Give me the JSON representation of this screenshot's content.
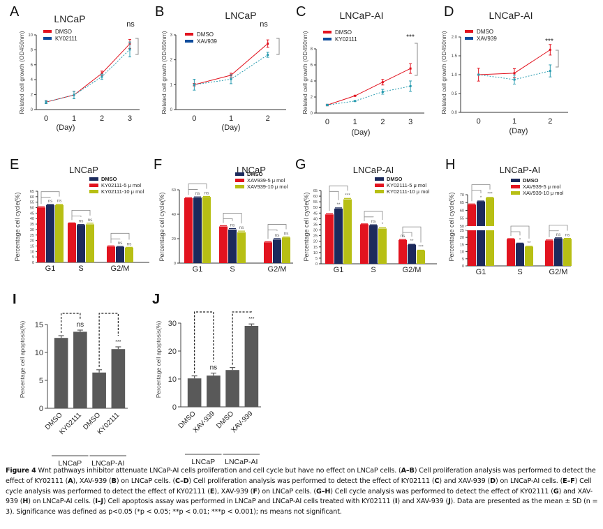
{
  "colors": {
    "dmso_red": "#e2131f",
    "treat_navy": "#1c2a5c",
    "treat_lime": "#b7bf14",
    "treat_teal_line": "#2a9cb0",
    "legend_blue": "#0d4c9c",
    "bar_gray": "#595959",
    "axis": "#333333",
    "bracket": "#888888"
  },
  "chart_data": [
    {
      "id": "A",
      "type": "line",
      "title": "LNCaP",
      "xlabel": "(Day)",
      "ylabel": "Related cell growth (OD450nm)",
      "x": [
        0,
        1,
        2,
        3
      ],
      "xlim": [
        -0.35,
        3.35
      ],
      "ylim": [
        0,
        10
      ],
      "yticks": [
        "0",
        "2",
        "4",
        "6",
        "8",
        "10"
      ],
      "ytick_values": [
        0,
        2,
        4,
        6,
        8,
        10
      ],
      "series": [
        {
          "name": "DMSO",
          "values": [
            1.0,
            1.95,
            4.85,
            8.8
          ],
          "err": [
            0.2,
            0.5,
            0.3,
            0.6
          ],
          "style": "solid"
        },
        {
          "name": "KY02111",
          "values": [
            1.0,
            1.95,
            4.4,
            8.05
          ],
          "err": [
            0.2,
            0.5,
            0.35,
            1.0
          ],
          "style": "dashed"
        }
      ],
      "significance": "ns",
      "legend": "top-left"
    },
    {
      "id": "B",
      "type": "line",
      "title": "LNCaP",
      "xlabel": "(Day)",
      "ylabel": "Related cell growth (OD450nm)",
      "x": [
        0,
        1,
        2
      ],
      "xlim": [
        -0.5,
        2.5
      ],
      "ylim": [
        0,
        3
      ],
      "yticks": [
        "0",
        "1",
        "2",
        "3"
      ],
      "ytick_values": [
        0,
        1,
        2,
        3
      ],
      "series": [
        {
          "name": "DMSO",
          "values": [
            1.0,
            1.38,
            2.65
          ],
          "err": [
            0.05,
            0.08,
            0.15
          ],
          "style": "solid"
        },
        {
          "name": "XAV939",
          "values": [
            1.0,
            1.22,
            2.2
          ],
          "err": [
            0.22,
            0.18,
            0.1
          ],
          "style": "dashed"
        }
      ],
      "significance": "ns",
      "legend": "top-left"
    },
    {
      "id": "C",
      "type": "line",
      "title": "LNCaP-AI",
      "xlabel": "(Day)",
      "ylabel": "Related cell growth (OD450nm)",
      "x": [
        0,
        1,
        2,
        3
      ],
      "xlim": [
        -0.4,
        3.5
      ],
      "ylim": [
        0,
        8
      ],
      "yticks": [
        "0",
        "2",
        "4",
        "6",
        "8"
      ],
      "ytick_values": [
        0,
        2,
        4,
        6,
        8
      ],
      "series": [
        {
          "name": "DMSO",
          "values": [
            1.0,
            2.15,
            3.85,
            5.55
          ],
          "err": [
            0.1,
            0.05,
            0.35,
            0.6
          ],
          "style": "solid"
        },
        {
          "name": "KY02111",
          "values": [
            1.0,
            1.5,
            2.65,
            3.35
          ],
          "err": [
            0.1,
            0.05,
            0.3,
            0.65
          ],
          "style": "dashed"
        }
      ],
      "significance": "***",
      "legend": "top-left"
    },
    {
      "id": "D",
      "type": "line",
      "title": "LNCaP-AI",
      "xlabel": "(Day)",
      "ylabel": "Related cell growth (OD450nm)",
      "x": [
        0,
        1,
        2
      ],
      "xlim": [
        -0.5,
        2.5
      ],
      "ylim": [
        0,
        2
      ],
      "yticks": [
        "0.0",
        "0.5",
        "1.0",
        "1.5",
        "2.0"
      ],
      "ytick_values": [
        0,
        0.5,
        1.0,
        1.5,
        2.0
      ],
      "series": [
        {
          "name": "DMSO",
          "values": [
            1.0,
            1.04,
            1.66
          ],
          "err": [
            0.17,
            0.12,
            0.14
          ],
          "style": "solid"
        },
        {
          "name": "XAV939",
          "values": [
            1.0,
            0.87,
            1.1
          ],
          "err": [
            0.0,
            0.12,
            0.16
          ],
          "style": "dashed"
        }
      ],
      "significance": "***",
      "legend": "top-left"
    },
    {
      "id": "E",
      "type": "bar",
      "title": "LNCaP",
      "ylabel": "Percentage cell cycle(%)",
      "categories": [
        "G1",
        "S",
        "G2/M"
      ],
      "ylim": [
        0,
        65
      ],
      "yticks": [
        "0",
        "5",
        "10",
        "15",
        "20",
        "25",
        "30",
        "35",
        "40",
        "45",
        "50",
        "55",
        "60",
        "65"
      ],
      "ytick_values": [
        0,
        5,
        10,
        15,
        20,
        25,
        30,
        35,
        40,
        45,
        50,
        55,
        60,
        65
      ],
      "legend_labels": [
        "DMSO",
        "KY02111-5 μ mol",
        "KY02111-10 μ mol"
      ],
      "series": [
        {
          "name": "DMSO",
          "values": [
            50.2,
            35.8,
            14.5
          ],
          "err": [
            0.6,
            0.3,
            0.6
          ]
        },
        {
          "name": "KY02111-5 μ mol",
          "values": [
            52.5,
            34.2,
            14.2
          ],
          "err": [
            0.4,
            0.4,
            0.4
          ]
        },
        {
          "name": "KY02111-10 μ mol",
          "values": [
            52.5,
            34.8,
            13.5
          ],
          "err": [
            0.6,
            1.0,
            0.3
          ]
        }
      ],
      "significance": [
        [
          "ns",
          "ns"
        ],
        [
          "ns",
          "ns"
        ],
        [
          "ns",
          "ns"
        ]
      ]
    },
    {
      "id": "F",
      "type": "bar",
      "title": "LNCaP",
      "ylabel": "Percentage cell cycle(%)",
      "categories": [
        "G1",
        "S",
        "G2/M"
      ],
      "ylim": [
        0,
        60
      ],
      "yticks": [
        "0",
        "20",
        "40",
        "60"
      ],
      "ytick_values": [
        0,
        20,
        40,
        60
      ],
      "legend_labels": [
        "DMSO",
        "XAV939-5 μ mol",
        "XAV939-10 μ mol"
      ],
      "series": [
        {
          "name": "DMSO",
          "values": [
            53.2,
            30.0,
            17.0
          ],
          "err": [
            0.4,
            0.6,
            0.6
          ]
        },
        {
          "name": "XAV939-5 μ mol",
          "values": [
            53.6,
            27.5,
            19.3
          ],
          "err": [
            0.6,
            0.8,
            0.8
          ]
        },
        {
          "name": "XAV939-10 μ mol",
          "values": [
            54.2,
            25.2,
            21.0
          ],
          "err": [
            0.4,
            1.0,
            0.4
          ]
        }
      ],
      "significance": [
        [
          "ns",
          "ns"
        ],
        [
          "ns",
          "ns"
        ],
        [
          "ns",
          "ns"
        ]
      ]
    },
    {
      "id": "G",
      "type": "bar",
      "title": "LNCaP-AI",
      "ylabel": "Percentage cell cycle(%)",
      "categories": [
        "G1",
        "S",
        "G2/M"
      ],
      "ylim": [
        0,
        65
      ],
      "yticks": [
        "0",
        "5",
        "10",
        "15",
        "20",
        "25",
        "30",
        "35",
        "40",
        "45",
        "50",
        "55",
        "60",
        "65"
      ],
      "ytick_values": [
        0,
        5,
        10,
        15,
        20,
        25,
        30,
        35,
        40,
        45,
        50,
        55,
        60,
        65
      ],
      "legend_labels": [
        "DMSO",
        "KY02111-5 μ mol",
        "KY02111-10 μ mol"
      ],
      "series": [
        {
          "name": "DMSO",
          "values": [
            43.8,
            35.0,
            21.2
          ],
          "err": [
            0.8,
            0.4,
            0.4
          ]
        },
        {
          "name": "KY02111-5 μ mol",
          "values": [
            49.0,
            34.2,
            17.0
          ],
          "err": [
            0.6,
            0.4,
            0.3
          ]
        },
        {
          "name": "KY02111-10 μ mol",
          "values": [
            57.2,
            31.3,
            11.8
          ],
          "err": [
            0.8,
            0.8,
            0.3
          ]
        }
      ],
      "significance": [
        [
          "**",
          "***"
        ],
        [
          "ns",
          "*"
        ],
        [
          "**",
          "***"
        ]
      ],
      "extra_labels": [
        {
          "category": 2,
          "bar": 0,
          "text": "ns"
        }
      ]
    },
    {
      "id": "H",
      "type": "bar",
      "title": "LNCaP-AI",
      "ylabel": "Percentage cell cycle(%)",
      "categories": [
        "G1",
        "S",
        "G2/M"
      ],
      "axis_break": [
        25,
        50
      ],
      "ylim_lower": [
        0,
        25
      ],
      "ylim_upper": [
        50,
        70
      ],
      "yticks_lower": [
        "0",
        "5",
        "10",
        "15",
        "20",
        "25"
      ],
      "ytick_values_lower": [
        0,
        5,
        10,
        15,
        20,
        25
      ],
      "yticks_upper": [
        "50",
        "55",
        "60",
        "65",
        "70"
      ],
      "ytick_values_upper": [
        50,
        55,
        60,
        65,
        70
      ],
      "legend_labels": [
        "DMSO",
        "XAV939-5 μ mol",
        "XAV939-10 μ mol"
      ],
      "series": [
        {
          "name": "DMSO",
          "values": [
            63.7,
            18.8,
            17.8
          ],
          "err": [
            0.4,
            0.3,
            0.4
          ]
        },
        {
          "name": "XAV939-5 μ mol",
          "values": [
            65.7,
            15.7,
            19.3
          ],
          "err": [
            0.3,
            0.3,
            0.4
          ]
        },
        {
          "name": "XAV939-10 μ mol",
          "values": [
            68.0,
            13.5,
            19.0
          ],
          "err": [
            0.4,
            0.3,
            0.3
          ]
        }
      ],
      "significance": [
        [
          "*",
          "***"
        ],
        [
          "*",
          "**"
        ],
        [
          "ns",
          "ns"
        ]
      ]
    },
    {
      "id": "I",
      "type": "bar",
      "title": "",
      "ylabel": "Percentage cell apoptosis(%)",
      "categories": [
        "DMSO",
        "KY02111",
        "DMSO",
        "KY02111"
      ],
      "groups": [
        "LNCaP",
        "LNCaP-AI"
      ],
      "ylim": [
        0,
        15
      ],
      "yticks": [
        "0",
        "5",
        "10",
        "15"
      ],
      "ytick_values": [
        0,
        5,
        10,
        15
      ],
      "values": [
        12.6,
        13.7,
        6.4,
        10.6
      ],
      "err": [
        0.4,
        0.3,
        0.5,
        0.4
      ],
      "significance": [
        "ns",
        "***"
      ]
    },
    {
      "id": "J",
      "type": "bar",
      "title": "",
      "ylabel": "Percentage cell apoptosis(%)",
      "categories": [
        "DMSO",
        "XAV-939",
        "DMSO",
        "XAV-939"
      ],
      "groups": [
        "LNCaP",
        "LNCaP-AI"
      ],
      "ylim": [
        0,
        30
      ],
      "yticks": [
        "0",
        "10",
        "20",
        "30"
      ],
      "ytick_values": [
        0,
        10,
        20,
        30
      ],
      "values": [
        10.2,
        11.2,
        13.2,
        29.0
      ],
      "err": [
        0.9,
        0.9,
        0.9,
        0.7
      ],
      "significance": [
        "ns",
        "***"
      ]
    }
  ],
  "panel_letters": [
    "A",
    "B",
    "C",
    "D",
    "E",
    "F",
    "G",
    "H",
    "I",
    "J"
  ],
  "caption": {
    "figure_label": "Figure 4",
    "p1": " Wnt pathways inhibitor attenuate LNCaP-AI cells proliferation and cell cycle but have no effect on LNCaP cells. (",
    "b1": "A–B",
    "p2": ") Cell proliferation analysis was performed to detect the effect of KY02111 (",
    "b2": "A",
    "p3": "), XAV-939 (",
    "b3": "B",
    "p4": ") on LNCaP cells. (",
    "b4": "C–D",
    "p5": ") Cell proliferation analysis was performed to detect the effect of KY02111 (",
    "b5": "C",
    "p6": ") and XAV-939 (",
    "b6": "D",
    "p7": ") on LNCaP-AI cells. (",
    "b7": "E–F",
    "p8": ") Cell cycle analysis was performed to detect the effect of KY02111 (",
    "b8": "E",
    "p9": "), XAV-939 (",
    "b9": "F",
    "p10": ") on LNCaP cells. (",
    "b10": "G–H",
    "p11": ") Cell cycle analysis was performed to detect the effect of KY02111 (",
    "b11": "G",
    "p12": ") and XAV-939 (",
    "b12": "H",
    "p13": ") on LNCaP-AI cells. (",
    "b13": "I–J",
    "p14": ") Cell apoptosis assay was performed in LNCaP and LNCaP-AI cells treated with KY02111 (",
    "b14": "I",
    "p15": ") and XAV-939 (",
    "b15": "J",
    "p16": "). Data are presented as the mean ± SD (n = 3). Significance was defined as p<0.05 (*p < 0.05; **p < 0.01; ***p < 0.001); ns means not significant."
  }
}
